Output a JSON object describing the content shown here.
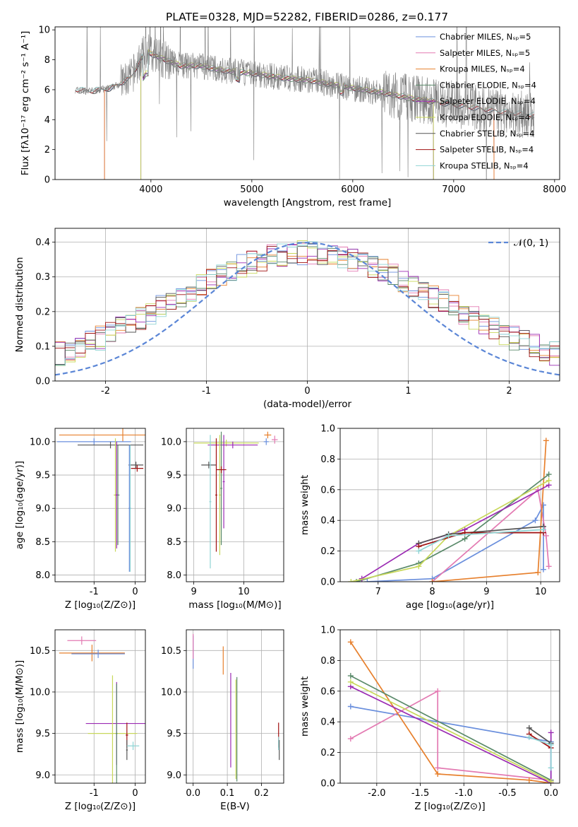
{
  "figure_title": "PLATE=0328, MJD=52282, FIBERID=0286, z=0.177",
  "colors": {
    "chabrier_miles": "#6a8fdd",
    "salpeter_miles": "#e37ab2",
    "kroupa_miles": "#e7802d",
    "chabrier_elodie": "#5a8a6a",
    "salpeter_elodie": "#9b2bb3",
    "kroupa_elodie": "#c8d85a",
    "chabrier_stelib": "#555555",
    "salpeter_stelib": "#a01010",
    "kroupa_stelib": "#8fd4d4",
    "data": "#7f7f7f",
    "normal": "#5b86d6"
  },
  "chart_data": [
    {
      "id": "spectrum",
      "type": "line",
      "xlabel": "wavelength [Angstrom, rest frame]",
      "ylabel": "Flux [fλ10⁻¹⁷ erg cm⁻² s⁻¹ A⁻¹]",
      "xlim": [
        3050,
        8050
      ],
      "ylim": [
        0,
        10.2
      ],
      "x_ticks": [
        4000,
        5000,
        6000,
        7000,
        8000
      ],
      "y_ticks": [
        0,
        2,
        4,
        6,
        8,
        10
      ],
      "legend_position": "top-right",
      "legend": [
        {
          "label": "Chabrier MILES, Nₛₚ=5",
          "color_key": "chabrier_miles"
        },
        {
          "label": "Salpeter MILES, Nₛₚ=5",
          "color_key": "salpeter_miles"
        },
        {
          "label": "Kroupa MILES, Nₛₚ=4",
          "color_key": "kroupa_miles"
        },
        {
          "label": "Chabrier ELODIE, Nₛₚ=4",
          "color_key": "chabrier_elodie"
        },
        {
          "label": "Salpeter ELODIE, Nₛₚ=4",
          "color_key": "salpeter_elodie"
        },
        {
          "label": "Kroupa ELODIE, Nₛₚ=4",
          "color_key": "kroupa_elodie"
        },
        {
          "label": "Chabrier STELIB, Nₛₚ=4",
          "color_key": "chabrier_stelib"
        },
        {
          "label": "Salpeter STELIB, Nₛₚ=4",
          "color_key": "salpeter_stelib"
        },
        {
          "label": "Kroupa STELIB, Nₛₚ=4",
          "color_key": "kroupa_stelib"
        }
      ],
      "continuum_points": [
        [
          3250,
          6.0
        ],
        [
          3400,
          5.9
        ],
        [
          3600,
          6.1
        ],
        [
          3800,
          6.8
        ],
        [
          3950,
          8.6
        ],
        [
          4100,
          8.1
        ],
        [
          4300,
          7.6
        ],
        [
          4500,
          7.6
        ],
        [
          4700,
          7.3
        ],
        [
          5000,
          7.1
        ],
        [
          5300,
          6.8
        ],
        [
          5600,
          6.6
        ],
        [
          6000,
          6.1
        ],
        [
          6300,
          5.8
        ],
        [
          6600,
          5.4
        ],
        [
          6900,
          5.1
        ],
        [
          7200,
          4.8
        ],
        [
          7500,
          4.5
        ],
        [
          7800,
          4.3
        ]
      ],
      "model_wavelength_ranges": [
        {
          "color_key": "chabrier_miles",
          "range": [
            3540,
            7400
          ]
        },
        {
          "color_key": "salpeter_miles",
          "range": [
            3540,
            7400
          ]
        },
        {
          "color_key": "kroupa_miles",
          "range": [
            3540,
            7400
          ]
        },
        {
          "color_key": "chabrier_elodie",
          "range": [
            3900,
            6800
          ]
        },
        {
          "color_key": "salpeter_elodie",
          "range": [
            3900,
            6800
          ]
        },
        {
          "color_key": "kroupa_elodie",
          "range": [
            3900,
            6800
          ]
        },
        {
          "color_key": "chabrier_stelib",
          "range": [
            3250,
            7800
          ]
        },
        {
          "color_key": "salpeter_stelib",
          "range": [
            3250,
            7800
          ]
        },
        {
          "color_key": "kroupa_stelib",
          "range": [
            3250,
            7800
          ]
        }
      ]
    },
    {
      "id": "residuals",
      "type": "line",
      "xlabel": "(data-model)/error",
      "ylabel": "Normed distribution",
      "xlim": [
        -2.5,
        2.5
      ],
      "ylim": [
        0,
        0.44
      ],
      "x_ticks": [
        -2,
        -1,
        0,
        1,
        2
      ],
      "y_ticks": [
        0.0,
        0.1,
        0.2,
        0.3,
        0.4
      ],
      "grid": true,
      "legend_position": "top-right",
      "legend": [
        {
          "label": "𝒩(0, 1)",
          "color_key": "normal"
        }
      ],
      "histogram_bins": [
        -2.5,
        2.5,
        50
      ]
    },
    {
      "id": "age_vs_Z",
      "type": "scatter",
      "xlabel": "Z [log₁₀(Z/Z⊙)]",
      "ylabel": "age  [log₁₀(age/yr)]",
      "xlim": [
        -1.95,
        0.25
      ],
      "ylim": [
        7.9,
        10.2
      ],
      "x_ticks": [
        -1,
        0
      ],
      "y_ticks": [
        8.0,
        8.5,
        9.0,
        9.5,
        10.0
      ],
      "grid": true,
      "error_bars": [
        {
          "color_key": "kroupa_miles",
          "x": -0.3,
          "y": 10.1,
          "xerr": 1.55,
          "yerr": 0.1
        },
        {
          "color_key": "chabrier_miles",
          "x": -1.0,
          "y": 10.0,
          "xerr": 0.9,
          "yerr": 0.05
        },
        {
          "color_key": "chabrier_stelib",
          "x": -0.6,
          "y": 9.95,
          "xerr": 0.8,
          "yerr": 0.05
        },
        {
          "color_key": "kroupa_elodie",
          "x": -0.48,
          "y": 9.2,
          "xerr": 0.04,
          "yerr": 0.85
        },
        {
          "color_key": "chabrier_elodie",
          "x": -0.42,
          "y": 9.2,
          "xerr": 0.04,
          "yerr": 0.75
        },
        {
          "color_key": "salpeter_elodie",
          "x": -0.45,
          "y": 9.2,
          "xerr": 0.03,
          "yerr": 0.8
        },
        {
          "color_key": "chabrier_stelib",
          "x": 0.02,
          "y": 9.65,
          "xerr": 0.18,
          "yerr": 0.05
        },
        {
          "color_key": "salpeter_stelib",
          "x": 0.05,
          "y": 9.6,
          "xerr": 0.15,
          "yerr": 0.05
        },
        {
          "color_key": "kroupa_stelib",
          "x": -0.12,
          "y": 9.0,
          "xerr": 0.03,
          "yerr": 0.95
        },
        {
          "color_key": "chabrier_miles",
          "x": -0.14,
          "y": 9.0,
          "xerr": 0.02,
          "yerr": 0.95
        }
      ]
    },
    {
      "id": "age_vs_mass",
      "type": "scatter",
      "xlabel": "mass [log₁₀(M/M⊙)]",
      "ylabel": "",
      "xlim": [
        8.85,
        10.8
      ],
      "ylim": [
        7.9,
        10.2
      ],
      "x_ticks": [
        9,
        10
      ],
      "y_ticks": [
        8.0,
        8.5,
        9.0,
        9.5,
        10.0
      ],
      "grid": true,
      "error_bars": [
        {
          "color_key": "kroupa_miles",
          "x": 10.48,
          "y": 10.1,
          "xerr": 0.07,
          "yerr": 0.05
        },
        {
          "color_key": "salpeter_miles",
          "x": 10.62,
          "y": 10.03,
          "xerr": 0.06,
          "yerr": 0.06
        },
        {
          "color_key": "chabrier_miles",
          "x": 10.45,
          "y": 10.0,
          "xerr": 0.05,
          "yerr": 0.05
        },
        {
          "color_key": "kroupa_elodie",
          "x": 9.65,
          "y": 9.98,
          "xerr": 0.65,
          "yerr": 0.05
        },
        {
          "color_key": "salpeter_elodie",
          "x": 9.78,
          "y": 9.95,
          "xerr": 0.5,
          "yerr": 0.05
        },
        {
          "color_key": "chabrier_stelib",
          "x": 9.3,
          "y": 9.65,
          "xerr": 0.15,
          "yerr": 0.05
        },
        {
          "color_key": "kroupa_stelib",
          "x": 9.33,
          "y": 9.1,
          "xerr": 0.02,
          "yerr": 1.0
        },
        {
          "color_key": "salpeter_stelib",
          "x": 9.45,
          "y": 9.2,
          "xerr": 0.02,
          "yerr": 0.85
        },
        {
          "color_key": "salpeter_elodie",
          "x": 9.6,
          "y": 9.4,
          "xerr": 0.02,
          "yerr": 0.7
        },
        {
          "color_key": "kroupa_elodie",
          "x": 9.52,
          "y": 9.2,
          "xerr": 0.02,
          "yerr": 0.9
        },
        {
          "color_key": "chabrier_elodie",
          "x": 9.55,
          "y": 9.3,
          "xerr": 0.02,
          "yerr": 0.85
        },
        {
          "color_key": "salpeter_stelib",
          "x": 9.55,
          "y": 9.58,
          "xerr": 0.1,
          "yerr": 0.05
        }
      ]
    },
    {
      "id": "weight_vs_age",
      "type": "line",
      "xlabel": "age  [log₁₀(age/yr)]",
      "ylabel": "mass weight",
      "xlim": [
        6.3,
        10.35
      ],
      "ylim": [
        0,
        1.0
      ],
      "x_ticks": [
        7,
        8,
        9,
        10
      ],
      "y_ticks": [
        0.0,
        0.2,
        0.4,
        0.6,
        0.8,
        1.0
      ],
      "grid": true,
      "series": [
        {
          "color_key": "chabrier_miles",
          "points": [
            [
              6.8,
              0.0
            ],
            [
              8.0,
              0.02
            ],
            [
              9.9,
              0.4
            ],
            [
              10.05,
              0.5
            ],
            [
              10.05,
              0.08
            ]
          ]
        },
        {
          "color_key": "salpeter_miles",
          "points": [
            [
              8.0,
              0.0
            ],
            [
              9.95,
              0.6
            ],
            [
              10.1,
              0.3
            ],
            [
              10.15,
              0.1
            ]
          ]
        },
        {
          "color_key": "kroupa_miles",
          "points": [
            [
              8.0,
              0.0
            ],
            [
              9.95,
              0.06
            ],
            [
              10.1,
              0.92
            ]
          ]
        },
        {
          "color_key": "chabrier_elodie",
          "points": [
            [
              6.6,
              0.0
            ],
            [
              7.75,
              0.12
            ],
            [
              8.6,
              0.28
            ],
            [
              10.15,
              0.7
            ]
          ]
        },
        {
          "color_key": "salpeter_elodie",
          "points": [
            [
              6.7,
              0.02
            ],
            [
              7.75,
              0.25
            ],
            [
              8.6,
              0.34
            ],
            [
              10.15,
              0.63
            ]
          ]
        },
        {
          "color_key": "kroupa_elodie",
          "points": [
            [
              6.5,
              0.0
            ],
            [
              7.75,
              0.1
            ],
            [
              8.3,
              0.3
            ],
            [
              10.15,
              0.66
            ]
          ]
        },
        {
          "color_key": "chabrier_stelib",
          "points": [
            [
              7.75,
              0.25
            ],
            [
              8.3,
              0.31
            ],
            [
              10.05,
              0.36
            ]
          ]
        },
        {
          "color_key": "salpeter_stelib",
          "points": [
            [
              7.75,
              0.23
            ],
            [
              8.6,
              0.32
            ],
            [
              10.05,
              0.32
            ]
          ]
        },
        {
          "color_key": "kroupa_stelib",
          "points": [
            [
              7.75,
              0.2
            ],
            [
              8.3,
              0.3
            ],
            [
              10.05,
              0.34
            ]
          ]
        }
      ]
    },
    {
      "id": "mass_vs_Z",
      "type": "scatter",
      "xlabel": "Z [log₁₀(Z/Z⊙)]",
      "ylabel": "mass [log₁₀(M/M⊙)]",
      "xlim": [
        -1.95,
        0.25
      ],
      "ylim": [
        8.9,
        10.75
      ],
      "x_ticks": [
        -1,
        0
      ],
      "y_ticks": [
        9.0,
        9.5,
        10.0,
        10.5
      ],
      "grid": true,
      "error_bars": [
        {
          "color_key": "salpeter_miles",
          "x": -1.3,
          "y": 10.62,
          "xerr": 0.35,
          "yerr": 0.05
        },
        {
          "color_key": "kroupa_miles",
          "x": -1.05,
          "y": 10.47,
          "xerr": 0.8,
          "yerr": 0.1
        },
        {
          "color_key": "chabrier_miles",
          "x": -0.9,
          "y": 10.46,
          "xerr": 0.65,
          "yerr": 0.05
        },
        {
          "color_key": "salpeter_elodie",
          "x": -0.45,
          "y": 9.62,
          "xerr": 0.75,
          "yerr": 0.5
        },
        {
          "color_key": "kroupa_elodie",
          "x": -0.55,
          "y": 9.5,
          "xerr": 0.6,
          "yerr": 0.7
        },
        {
          "color_key": "chabrier_elodie",
          "x": -0.45,
          "y": 9.5,
          "xerr": 0.02,
          "yerr": 0.6
        },
        {
          "color_key": "salpeter_stelib",
          "x": -0.2,
          "y": 9.48,
          "xerr": 0.03,
          "yerr": 0.15
        },
        {
          "color_key": "chabrier_stelib",
          "x": -0.2,
          "y": 9.3,
          "xerr": 0.02,
          "yerr": 0.12
        },
        {
          "color_key": "kroupa_stelib",
          "x": -0.05,
          "y": 9.35,
          "xerr": 0.15,
          "yerr": 0.05
        }
      ]
    },
    {
      "id": "mass_vs_EBV",
      "type": "scatter",
      "xlabel": "E(B-V)",
      "ylabel": "",
      "xlim": [
        -0.02,
        0.265
      ],
      "ylim": [
        8.9,
        10.75
      ],
      "x_ticks": [
        0.0,
        0.1,
        0.2
      ],
      "y_ticks": [
        9.0,
        9.5,
        10.0,
        10.5
      ],
      "grid": true,
      "error_bars": [
        {
          "color_key": "chabrier_miles",
          "x": 0.0,
          "y": 10.48,
          "xerr": 0.0,
          "yerr": 0.2
        },
        {
          "color_key": "salpeter_miles",
          "x": 0.0,
          "y": 10.55,
          "xerr": 0.0,
          "yerr": 0.15
        },
        {
          "color_key": "kroupa_miles",
          "x": 0.088,
          "y": 10.38,
          "xerr": 0.0,
          "yerr": 0.17
        },
        {
          "color_key": "salpeter_elodie",
          "x": 0.11,
          "y": 9.66,
          "xerr": 0.0,
          "yerr": 0.57
        },
        {
          "color_key": "kroupa_elodie",
          "x": 0.125,
          "y": 9.55,
          "xerr": 0.0,
          "yerr": 0.6
        },
        {
          "color_key": "chabrier_elodie",
          "x": 0.128,
          "y": 9.55,
          "xerr": 0.0,
          "yerr": 0.63
        },
        {
          "color_key": "salpeter_stelib",
          "x": 0.25,
          "y": 9.48,
          "xerr": 0.0,
          "yerr": 0.15
        },
        {
          "color_key": "chabrier_stelib",
          "x": 0.252,
          "y": 9.3,
          "xerr": 0.0,
          "yerr": 0.12
        },
        {
          "color_key": "kroupa_stelib",
          "x": 0.25,
          "y": 9.38,
          "xerr": 0.0,
          "yerr": 0.08
        }
      ]
    },
    {
      "id": "weight_vs_Z",
      "type": "line",
      "xlabel": "Z [log₁₀(Z/Z⊙)]",
      "ylabel": "mass weight",
      "xlim": [
        -2.42,
        0.1
      ],
      "ylim": [
        0,
        1.0
      ],
      "x_ticks": [
        -2.0,
        -1.5,
        -1.0,
        -0.5,
        0.0
      ],
      "y_ticks": [
        0.0,
        0.2,
        0.4,
        0.6,
        0.8,
        1.0
      ],
      "grid": true,
      "series": [
        {
          "color_key": "chabrier_miles",
          "points": [
            [
              -2.3,
              0.5
            ],
            [
              -1.3,
              0.4
            ],
            [
              0.0,
              0.27
            ],
            [
              0.0,
              0.0
            ]
          ]
        },
        {
          "color_key": "salpeter_miles",
          "points": [
            [
              -2.3,
              0.29
            ],
            [
              -1.3,
              0.6
            ],
            [
              -1.3,
              0.1
            ],
            [
              0.0,
              0.02
            ]
          ]
        },
        {
          "color_key": "kroupa_miles",
          "points": [
            [
              -2.3,
              0.92
            ],
            [
              -1.3,
              0.06
            ],
            [
              -0.25,
              0.02
            ],
            [
              0.0,
              0.0
            ]
          ]
        },
        {
          "color_key": "chabrier_elodie",
          "points": [
            [
              -2.3,
              0.7
            ],
            [
              0.0,
              0.02
            ]
          ]
        },
        {
          "color_key": "salpeter_elodie",
          "points": [
            [
              -2.3,
              0.63
            ],
            [
              0.0,
              0.0
            ],
            [
              0.0,
              0.33
            ]
          ]
        },
        {
          "color_key": "kroupa_elodie",
          "points": [
            [
              -2.3,
              0.66
            ],
            [
              0.0,
              0.01
            ]
          ]
        },
        {
          "color_key": "chabrier_stelib",
          "points": [
            [
              -0.25,
              0.36
            ],
            [
              0.0,
              0.26
            ]
          ]
        },
        {
          "color_key": "salpeter_stelib",
          "points": [
            [
              -0.25,
              0.32
            ],
            [
              0.0,
              0.23
            ]
          ]
        },
        {
          "color_key": "kroupa_stelib",
          "points": [
            [
              -0.25,
              0.3
            ],
            [
              0.0,
              0.25
            ],
            [
              0.0,
              0.1
            ]
          ]
        }
      ]
    }
  ]
}
